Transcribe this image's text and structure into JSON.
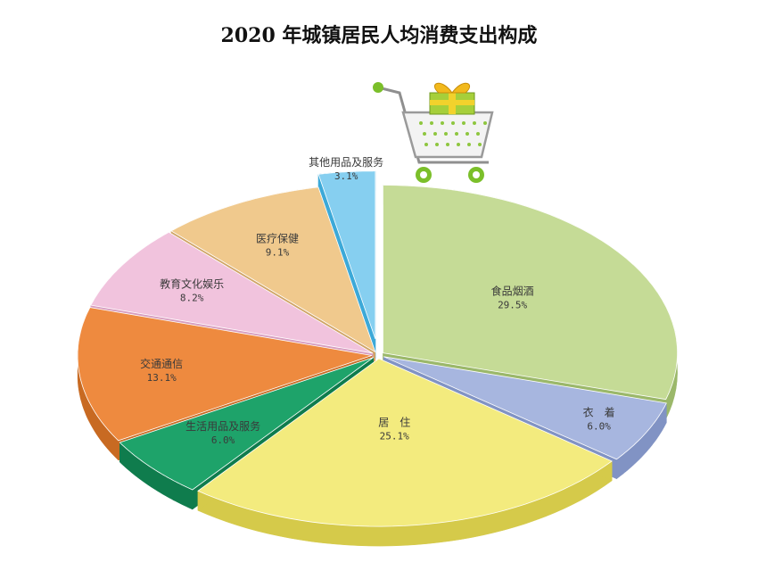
{
  "chart_data": {
    "type": "pie",
    "title": "2020 年城镇居民人均消费支出构成",
    "unit": "%",
    "slices": [
      {
        "label": "食品烟酒",
        "value": 29.5,
        "value_text": "29.5%",
        "color": "#c5db96",
        "side": "#9bb86a"
      },
      {
        "label": "衣　着",
        "value": 6.0,
        "value_text": "6.0%",
        "color": "#a7b6df",
        "side": "#8193c4"
      },
      {
        "label": "居　住",
        "value": 25.1,
        "value_text": "25.1%",
        "color": "#f3eb7e",
        "side": "#d5ca4a"
      },
      {
        "label": "生活用品及服务",
        "value": 6.0,
        "value_text": "6.0%",
        "color": "#1ea36a",
        "side": "#0f7c4d"
      },
      {
        "label": "交通通信",
        "value": 13.1,
        "value_text": "13.1%",
        "color": "#ee8a3f",
        "side": "#c86a22"
      },
      {
        "label": "教育文化娱乐",
        "value": 8.2,
        "value_text": "8.2%",
        "color": "#f1c3dd",
        "side": "#d79cbf"
      },
      {
        "label": "医疗保健",
        "value": 9.1,
        "value_text": "9.1%",
        "color": "#f0c98d",
        "side": "#d0a466"
      },
      {
        "label": "其他用品及服务",
        "value": 3.1,
        "value_text": "3.1%",
        "color": "#86cff0",
        "side": "#3ca9d8"
      }
    ]
  },
  "decoration": {
    "icon": "shopping-cart-with-gift-icon"
  }
}
